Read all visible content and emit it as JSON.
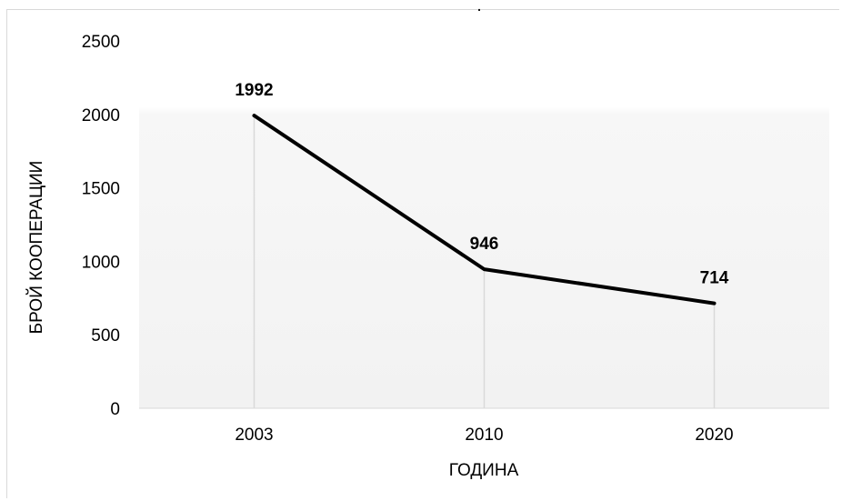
{
  "chart_data": {
    "type": "line",
    "title": ".",
    "xlabel": "ГОДИНА",
    "ylabel": "БРОЙ КООПЕРАЦИИ",
    "categories": [
      "2003",
      "2010",
      "2020"
    ],
    "series": [
      {
        "values": [
          1992,
          946,
          714
        ],
        "color": "#000000"
      }
    ],
    "data_labels": [
      "1992",
      "946",
      "714"
    ],
    "ylim": [
      0,
      2500
    ],
    "yticks": [
      0,
      500,
      1000,
      1500,
      2000,
      2500
    ],
    "ytick_labels": [
      "0",
      "500",
      "1000",
      "1500",
      "2000",
      "2500"
    ],
    "drop_lines": true,
    "grid": false,
    "legend": "none",
    "plot_background": "#f2f2f2"
  }
}
